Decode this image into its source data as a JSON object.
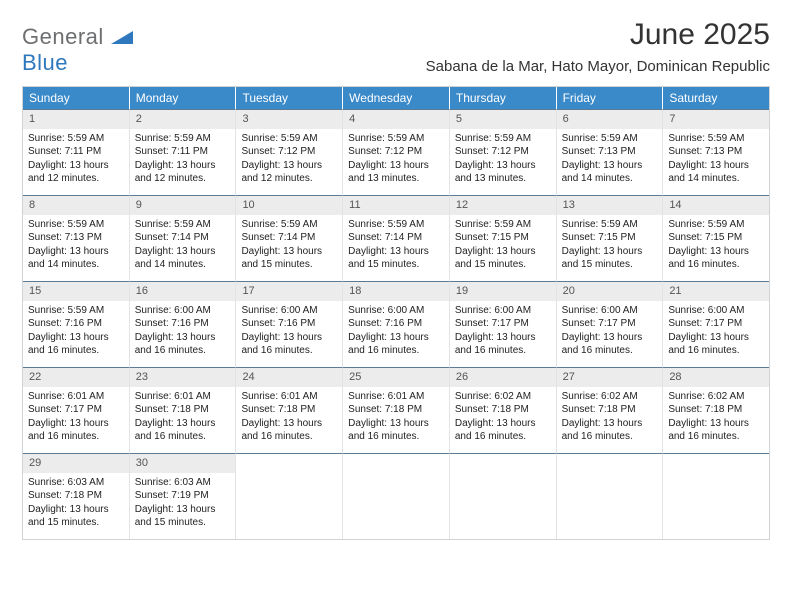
{
  "brand": {
    "text1": "General",
    "text2": "Blue"
  },
  "title": "June 2025",
  "location": "Sabana de la Mar, Hato Mayor, Dominican Republic",
  "colors": {
    "header_bg": "#3a89c9",
    "header_text": "#ffffff",
    "daynum_bg": "#ececec",
    "daynum_text": "#555555",
    "cell_border_top": "#5a7a96",
    "cell_border_side": "#e1e3e5",
    "body_text": "#222222",
    "logo_gray": "#6d6f71",
    "logo_blue": "#2f78bd"
  },
  "weekdays": [
    "Sunday",
    "Monday",
    "Tuesday",
    "Wednesday",
    "Thursday",
    "Friday",
    "Saturday"
  ],
  "weeks": [
    [
      {
        "n": "1",
        "sr": "5:59 AM",
        "ss": "7:11 PM",
        "dl": "13 hours and 12 minutes."
      },
      {
        "n": "2",
        "sr": "5:59 AM",
        "ss": "7:11 PM",
        "dl": "13 hours and 12 minutes."
      },
      {
        "n": "3",
        "sr": "5:59 AM",
        "ss": "7:12 PM",
        "dl": "13 hours and 12 minutes."
      },
      {
        "n": "4",
        "sr": "5:59 AM",
        "ss": "7:12 PM",
        "dl": "13 hours and 13 minutes."
      },
      {
        "n": "5",
        "sr": "5:59 AM",
        "ss": "7:12 PM",
        "dl": "13 hours and 13 minutes."
      },
      {
        "n": "6",
        "sr": "5:59 AM",
        "ss": "7:13 PM",
        "dl": "13 hours and 14 minutes."
      },
      {
        "n": "7",
        "sr": "5:59 AM",
        "ss": "7:13 PM",
        "dl": "13 hours and 14 minutes."
      }
    ],
    [
      {
        "n": "8",
        "sr": "5:59 AM",
        "ss": "7:13 PM",
        "dl": "13 hours and 14 minutes."
      },
      {
        "n": "9",
        "sr": "5:59 AM",
        "ss": "7:14 PM",
        "dl": "13 hours and 14 minutes."
      },
      {
        "n": "10",
        "sr": "5:59 AM",
        "ss": "7:14 PM",
        "dl": "13 hours and 15 minutes."
      },
      {
        "n": "11",
        "sr": "5:59 AM",
        "ss": "7:14 PM",
        "dl": "13 hours and 15 minutes."
      },
      {
        "n": "12",
        "sr": "5:59 AM",
        "ss": "7:15 PM",
        "dl": "13 hours and 15 minutes."
      },
      {
        "n": "13",
        "sr": "5:59 AM",
        "ss": "7:15 PM",
        "dl": "13 hours and 15 minutes."
      },
      {
        "n": "14",
        "sr": "5:59 AM",
        "ss": "7:15 PM",
        "dl": "13 hours and 16 minutes."
      }
    ],
    [
      {
        "n": "15",
        "sr": "5:59 AM",
        "ss": "7:16 PM",
        "dl": "13 hours and 16 minutes."
      },
      {
        "n": "16",
        "sr": "6:00 AM",
        "ss": "7:16 PM",
        "dl": "13 hours and 16 minutes."
      },
      {
        "n": "17",
        "sr": "6:00 AM",
        "ss": "7:16 PM",
        "dl": "13 hours and 16 minutes."
      },
      {
        "n": "18",
        "sr": "6:00 AM",
        "ss": "7:16 PM",
        "dl": "13 hours and 16 minutes."
      },
      {
        "n": "19",
        "sr": "6:00 AM",
        "ss": "7:17 PM",
        "dl": "13 hours and 16 minutes."
      },
      {
        "n": "20",
        "sr": "6:00 AM",
        "ss": "7:17 PM",
        "dl": "13 hours and 16 minutes."
      },
      {
        "n": "21",
        "sr": "6:00 AM",
        "ss": "7:17 PM",
        "dl": "13 hours and 16 minutes."
      }
    ],
    [
      {
        "n": "22",
        "sr": "6:01 AM",
        "ss": "7:17 PM",
        "dl": "13 hours and 16 minutes."
      },
      {
        "n": "23",
        "sr": "6:01 AM",
        "ss": "7:18 PM",
        "dl": "13 hours and 16 minutes."
      },
      {
        "n": "24",
        "sr": "6:01 AM",
        "ss": "7:18 PM",
        "dl": "13 hours and 16 minutes."
      },
      {
        "n": "25",
        "sr": "6:01 AM",
        "ss": "7:18 PM",
        "dl": "13 hours and 16 minutes."
      },
      {
        "n": "26",
        "sr": "6:02 AM",
        "ss": "7:18 PM",
        "dl": "13 hours and 16 minutes."
      },
      {
        "n": "27",
        "sr": "6:02 AM",
        "ss": "7:18 PM",
        "dl": "13 hours and 16 minutes."
      },
      {
        "n": "28",
        "sr": "6:02 AM",
        "ss": "7:18 PM",
        "dl": "13 hours and 16 minutes."
      }
    ],
    [
      {
        "n": "29",
        "sr": "6:03 AM",
        "ss": "7:18 PM",
        "dl": "13 hours and 15 minutes."
      },
      {
        "n": "30",
        "sr": "6:03 AM",
        "ss": "7:19 PM",
        "dl": "13 hours and 15 minutes."
      },
      null,
      null,
      null,
      null,
      null
    ]
  ],
  "labels": {
    "sunrise": "Sunrise:",
    "sunset": "Sunset:",
    "daylight": "Daylight:"
  }
}
